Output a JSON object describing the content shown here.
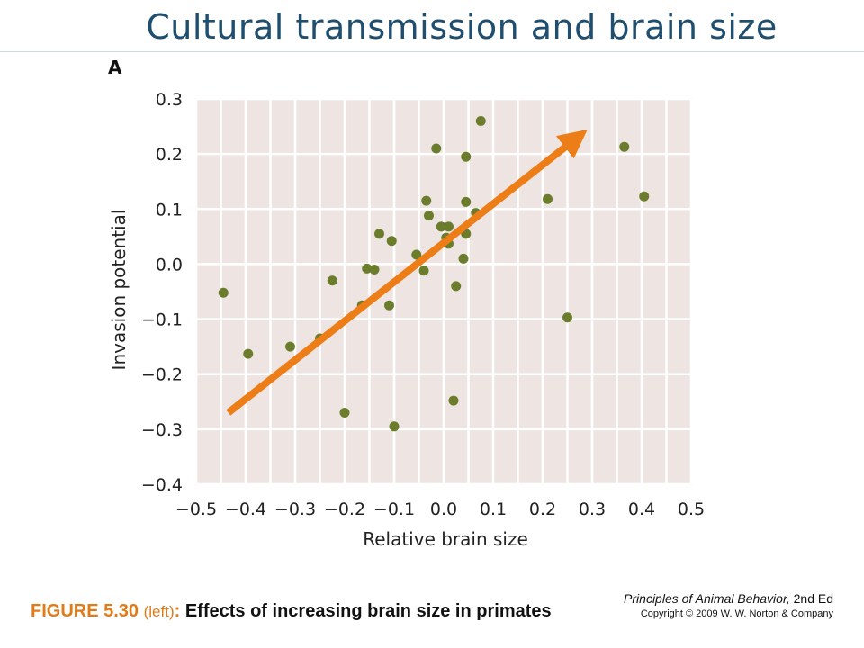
{
  "slide": {
    "title": "Cultural transmission and brain size",
    "panel_letter": "A"
  },
  "caption": {
    "figure_number": "FIGURE 5.30",
    "side": "(left)",
    "colon": ":",
    "text": "Effects of increasing brain size in primates"
  },
  "credit": {
    "book_title": "Principles of Animal Behavior,",
    "edition": "2nd Ed",
    "copyright": "Copyright © 2009 W. W. Norton & Company"
  },
  "colors": {
    "plot_background": "#eee5e3",
    "grid": "#ffffff",
    "points": "#6b7d2c",
    "arrow": "#ec7d17",
    "title": "#1f4e6e",
    "caption_accent": "#e07b17"
  },
  "chart_data": {
    "type": "scatter",
    "title": "",
    "xlabel": "Relative brain size",
    "ylabel": "Invasion potential",
    "xlim": [
      -0.5,
      0.5
    ],
    "ylim": [
      -0.4,
      0.3
    ],
    "xticks": [
      -0.5,
      -0.4,
      -0.3,
      -0.2,
      -0.1,
      0.0,
      0.1,
      0.2,
      0.3,
      0.4,
      0.5
    ],
    "yticks": [
      0.3,
      0.2,
      0.1,
      0.0,
      -0.1,
      -0.2,
      -0.3,
      -0.4
    ],
    "xtick_labels": [
      "−0.5",
      "−0.4",
      "−0.3",
      "−0.2",
      "−0.1",
      "0.0",
      "0.1",
      "0.2",
      "0.3",
      "0.4",
      "0.5"
    ],
    "ytick_labels": [
      "0.3",
      "0.2",
      "0.1",
      "0.0",
      "−0.1",
      "−0.2",
      "−0.3",
      "−0.4"
    ],
    "grid": true,
    "x_minor_step": 0.05,
    "series": [
      {
        "x": [
          -0.445,
          -0.395,
          -0.31,
          -0.25,
          -0.225,
          -0.2,
          -0.165,
          -0.155,
          -0.14,
          -0.13,
          -0.11,
          -0.105,
          -0.1,
          -0.055,
          -0.04,
          -0.035,
          -0.03,
          -0.015,
          -0.005,
          0.005,
          0.01,
          0.01,
          0.02,
          0.025,
          0.04,
          0.045,
          0.045,
          0.045,
          0.065,
          0.075,
          0.21,
          0.25,
          0.365,
          0.405
        ],
        "y": [
          -0.052,
          -0.163,
          -0.15,
          -0.135,
          -0.03,
          -0.27,
          -0.075,
          -0.008,
          -0.01,
          0.055,
          -0.075,
          0.042,
          -0.295,
          0.017,
          -0.012,
          0.115,
          0.088,
          0.21,
          0.068,
          0.048,
          0.068,
          0.037,
          -0.248,
          -0.04,
          0.01,
          0.195,
          0.113,
          0.055,
          0.093,
          0.26,
          0.118,
          -0.097,
          0.213,
          0.123
        ]
      }
    ],
    "trend_arrow": {
      "from": [
        -0.435,
        -0.27
      ],
      "to": [
        0.27,
        0.23
      ]
    }
  }
}
